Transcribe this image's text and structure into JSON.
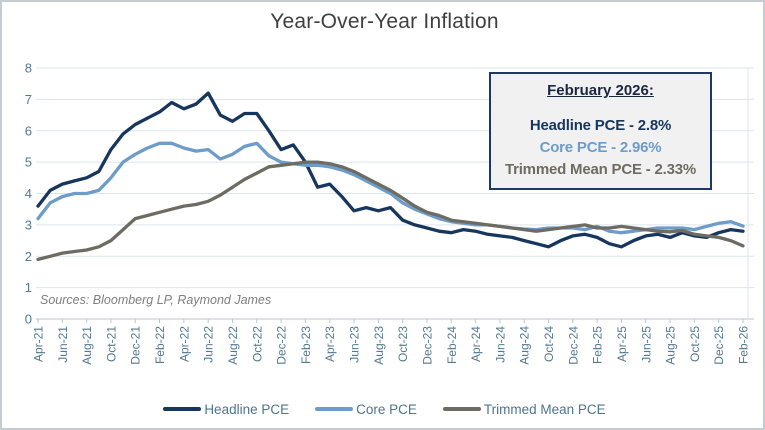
{
  "frame": {
    "title": "Year-Over-Year Inflation",
    "source_note": "Sources: Bloomberg LP, Raymond James"
  },
  "annotation_box": {
    "heading": "February 2026:",
    "lines": [
      {
        "text": "Headline PCE - 2.8%",
        "color": "#17365d"
      },
      {
        "text": "Core PCE - 2.96%",
        "color": "#6d9cc9"
      },
      {
        "text": "Trimmed Mean PCE - 2.33%",
        "color": "#6e6b62"
      }
    ]
  },
  "chart_data": {
    "type": "line",
    "title": "Year-Over-Year Inflation",
    "xlabel": "",
    "ylabel": "",
    "ylim": [
      0,
      8
    ],
    "y_ticks": [
      0,
      1,
      2,
      3,
      4,
      5,
      6,
      7,
      8
    ],
    "grid": true,
    "legend_position": "bottom",
    "x_tick_labels": [
      "Apr-21",
      "Jun-21",
      "Aug-21",
      "Oct-21",
      "Dec-21",
      "Feb-22",
      "Apr-22",
      "Jun-22",
      "Aug-22",
      "Oct-22",
      "Dec-22",
      "Feb-23",
      "Apr-23",
      "Jun-23",
      "Aug-23",
      "Oct-23",
      "Dec-23",
      "Feb-24",
      "Apr-24",
      "Jun-24",
      "Aug-24",
      "Oct-24",
      "Dec-24",
      "Feb-25",
      "Apr-25",
      "Jun-25",
      "Aug-25",
      "Oct-25",
      "Dec-25",
      "Feb-26"
    ],
    "months": [
      "Apr-21",
      "May-21",
      "Jun-21",
      "Jul-21",
      "Aug-21",
      "Sep-21",
      "Oct-21",
      "Nov-21",
      "Dec-21",
      "Jan-22",
      "Feb-22",
      "Mar-22",
      "Apr-22",
      "May-22",
      "Jun-22",
      "Jul-22",
      "Aug-22",
      "Sep-22",
      "Oct-22",
      "Nov-22",
      "Dec-22",
      "Jan-23",
      "Feb-23",
      "Mar-23",
      "Apr-23",
      "May-23",
      "Jun-23",
      "Jul-23",
      "Aug-23",
      "Sep-23",
      "Oct-23",
      "Nov-23",
      "Dec-23",
      "Jan-24",
      "Feb-24",
      "Mar-24",
      "Apr-24",
      "May-24",
      "Jun-24",
      "Jul-24",
      "Aug-24",
      "Sep-24",
      "Oct-24",
      "Nov-24",
      "Dec-24",
      "Jan-25",
      "Feb-25",
      "Mar-25",
      "Apr-25",
      "May-25",
      "Jun-25",
      "Jul-25",
      "Aug-25",
      "Sep-25",
      "Oct-25",
      "Nov-25",
      "Dec-25",
      "Jan-26",
      "Feb-26"
    ],
    "series": [
      {
        "name": "Headline PCE",
        "color": "#17365d",
        "final_value_label": "2.8%",
        "values": [
          3.6,
          4.1,
          4.3,
          4.4,
          4.5,
          4.7,
          5.4,
          5.9,
          6.2,
          6.4,
          6.6,
          6.9,
          6.7,
          6.85,
          7.2,
          6.5,
          6.3,
          6.55,
          6.55,
          6.0,
          5.4,
          5.55,
          5.0,
          4.2,
          4.3,
          3.9,
          3.45,
          3.55,
          3.45,
          3.55,
          3.15,
          3.0,
          2.9,
          2.8,
          2.75,
          2.85,
          2.8,
          2.7,
          2.65,
          2.6,
          2.5,
          2.4,
          2.3,
          2.5,
          2.65,
          2.7,
          2.6,
          2.4,
          2.3,
          2.5,
          2.65,
          2.7,
          2.6,
          2.75,
          2.65,
          2.6,
          2.75,
          2.85,
          2.8
        ]
      },
      {
        "name": "Core PCE",
        "color": "#6d9cc9",
        "final_value_label": "2.96%",
        "values": [
          3.2,
          3.7,
          3.9,
          4.0,
          4.0,
          4.1,
          4.5,
          5.0,
          5.25,
          5.45,
          5.6,
          5.6,
          5.45,
          5.35,
          5.4,
          5.1,
          5.25,
          5.5,
          5.6,
          5.2,
          5.0,
          4.95,
          4.9,
          4.9,
          4.85,
          4.75,
          4.6,
          4.4,
          4.2,
          4.0,
          3.7,
          3.5,
          3.35,
          3.2,
          3.1,
          3.05,
          3.0,
          3.0,
          2.95,
          2.9,
          2.87,
          2.85,
          2.9,
          2.9,
          2.9,
          2.85,
          2.95,
          2.8,
          2.75,
          2.8,
          2.85,
          2.9,
          2.9,
          2.9,
          2.85,
          2.95,
          3.05,
          3.1,
          2.96
        ]
      },
      {
        "name": "Trimmed Mean PCE",
        "color": "#6e6b62",
        "final_value_label": "2.33%",
        "values": [
          1.9,
          2.0,
          2.1,
          2.15,
          2.2,
          2.3,
          2.5,
          2.85,
          3.2,
          3.3,
          3.4,
          3.5,
          3.6,
          3.65,
          3.75,
          3.95,
          4.2,
          4.45,
          4.65,
          4.85,
          4.9,
          4.95,
          5.0,
          5.0,
          4.95,
          4.85,
          4.7,
          4.5,
          4.3,
          4.1,
          3.85,
          3.6,
          3.4,
          3.3,
          3.15,
          3.1,
          3.05,
          3.0,
          2.95,
          2.9,
          2.85,
          2.8,
          2.85,
          2.9,
          2.95,
          3.0,
          2.9,
          2.9,
          2.95,
          2.9,
          2.85,
          2.8,
          2.78,
          2.82,
          2.7,
          2.65,
          2.6,
          2.5,
          2.33
        ]
      }
    ],
    "style": {
      "gridline_color": "#dce5ec",
      "axis_color": "#b9c6ce",
      "tick_label_color": "#537991",
      "line_width": 3.3
    }
  }
}
